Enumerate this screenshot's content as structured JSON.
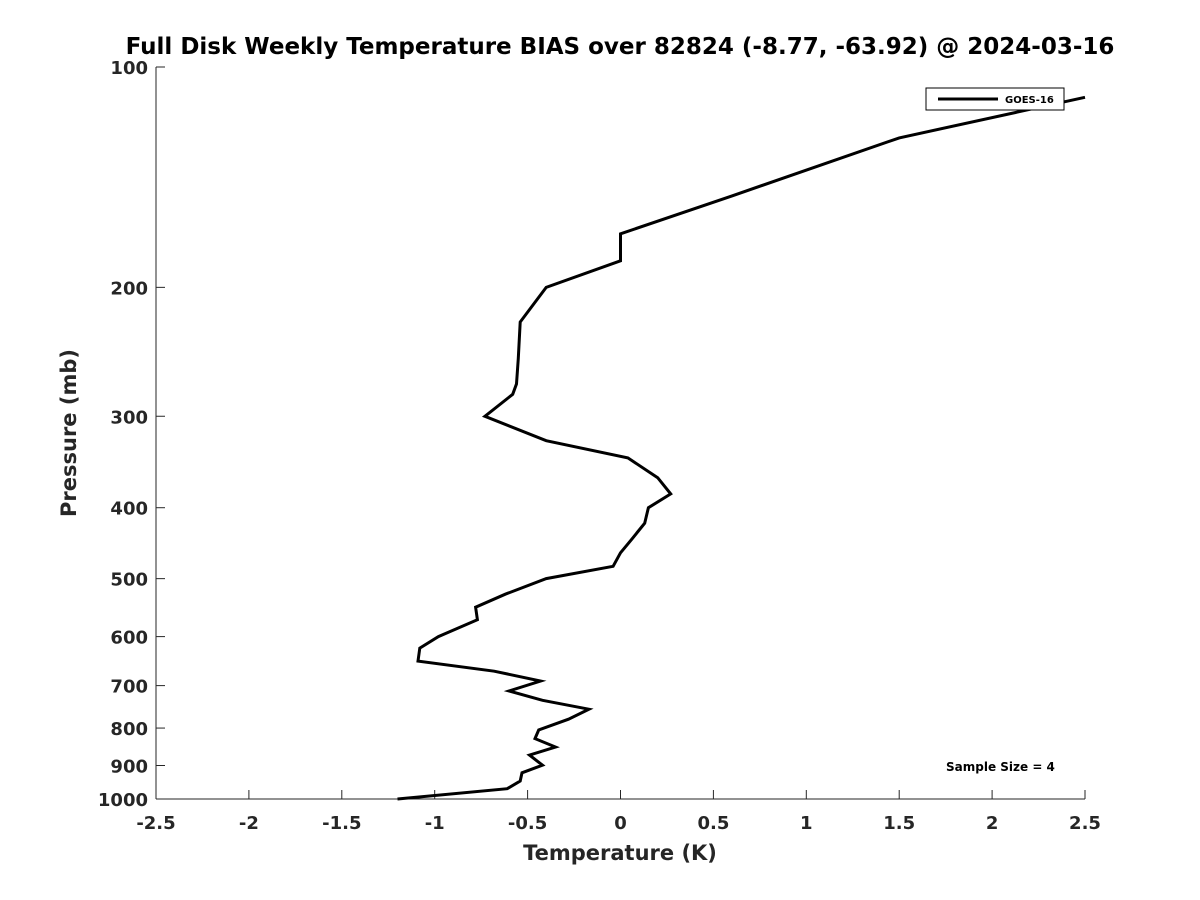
{
  "chart_data": {
    "type": "line",
    "title": "Full Disk Weekly Temperature BIAS over 82824 (-8.77, -63.92) @ 2024-03-16",
    "xlabel": "Temperature (K)",
    "ylabel": "Pressure (mb)",
    "xlim": [
      -2.5,
      2.5
    ],
    "ylim": [
      100,
      1000
    ],
    "y_scale": "log",
    "y_reversed": true,
    "x_ticks": [
      -2.5,
      -2,
      -1.5,
      -1,
      -0.5,
      0,
      0.5,
      1,
      1.5,
      2,
      2.5
    ],
    "x_tick_labels": [
      "-2.5",
      "-2",
      "-1.5",
      "-1",
      "-0.5",
      "0",
      "0.5",
      "1",
      "1.5",
      "2",
      "2.5"
    ],
    "y_ticks": [
      100,
      200,
      300,
      400,
      500,
      600,
      700,
      800,
      900,
      1000
    ],
    "y_tick_labels": [
      "100",
      "200",
      "300",
      "400",
      "500",
      "600",
      "700",
      "800",
      "900",
      "1000"
    ],
    "grid": false,
    "legend_position": "top-right",
    "series": [
      {
        "name": "GOES-16",
        "color": "#000000",
        "points": [
          [
            2.5,
            110
          ],
          [
            1.5,
            125
          ],
          [
            0.6,
            150
          ],
          [
            0.0,
            169
          ],
          [
            0.0,
            184
          ],
          [
            -0.4,
            200
          ],
          [
            -0.54,
            223
          ],
          [
            -0.55,
            250
          ],
          [
            -0.56,
            271
          ],
          [
            -0.58,
            280
          ],
          [
            -0.73,
            300
          ],
          [
            -0.4,
            324
          ],
          [
            0.04,
            342
          ],
          [
            0.2,
            364
          ],
          [
            0.27,
            383
          ],
          [
            0.15,
            400
          ],
          [
            0.13,
            420
          ],
          [
            0.06,
            442
          ],
          [
            0.0,
            461
          ],
          [
            -0.04,
            481
          ],
          [
            -0.4,
            500
          ],
          [
            -0.62,
            525
          ],
          [
            -0.78,
            547
          ],
          [
            -0.77,
            569
          ],
          [
            -0.98,
            600
          ],
          [
            -1.08,
            622
          ],
          [
            -1.09,
            648
          ],
          [
            -0.68,
            669
          ],
          [
            -0.43,
            690
          ],
          [
            -0.6,
            712
          ],
          [
            -0.42,
            733
          ],
          [
            -0.17,
            754
          ],
          [
            -0.28,
            778
          ],
          [
            -0.44,
            805
          ],
          [
            -0.46,
            827
          ],
          [
            -0.35,
            849
          ],
          [
            -0.49,
            871
          ],
          [
            -0.42,
            899
          ],
          [
            -0.53,
            921
          ],
          [
            -0.54,
            945
          ],
          [
            -0.61,
            968
          ],
          [
            -1.2,
            1000
          ]
        ]
      }
    ],
    "annotations": [
      {
        "text": "Sample Size = 4",
        "position": "bottom-right"
      }
    ]
  }
}
